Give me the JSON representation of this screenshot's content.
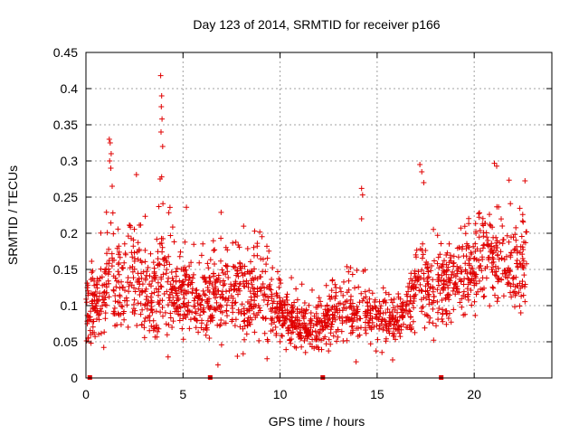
{
  "chart_data": {
    "type": "scatter",
    "title": "Day 123 of 2014, SRMTID for receiver p166",
    "xlabel": "GPS time / hours",
    "ylabel": "SRMTID / TECUs",
    "xlim": [
      0,
      24
    ],
    "ylim": [
      0,
      0.45
    ],
    "xticks": [
      0,
      5,
      10,
      15,
      20
    ],
    "xtick_labels": [
      "0",
      "5",
      "10",
      "15",
      "20"
    ],
    "yticks": [
      0,
      0.05,
      0.1,
      0.15,
      0.2,
      0.25,
      0.3,
      0.35,
      0.4,
      0.45
    ],
    "ytick_labels": [
      "0",
      "0.05",
      "0.1",
      "0.15",
      "0.2",
      "0.25",
      "0.3",
      "0.35",
      "0.4",
      "0.45"
    ],
    "grid": true,
    "marker": "plus",
    "color": "#e00000",
    "zero_markers_x": [
      0.2,
      6.4,
      12.2,
      18.3
    ],
    "series": [
      {
        "name": "SRMTID",
        "note": "approximately 2000 '+' points between 0.0 and 22.7 h; sampled via envelope",
        "envelope": [
          {
            "t": 0.0,
            "mean": 0.09,
            "spread": 0.025
          },
          {
            "t": 0.5,
            "mean": 0.095,
            "spread": 0.03
          },
          {
            "t": 1.0,
            "mean": 0.12,
            "spread": 0.04
          },
          {
            "t": 1.3,
            "mean": 0.17,
            "spread": 0.06
          },
          {
            "t": 1.8,
            "mean": 0.12,
            "spread": 0.04
          },
          {
            "t": 2.3,
            "mean": 0.15,
            "spread": 0.05
          },
          {
            "t": 2.8,
            "mean": 0.13,
            "spread": 0.05
          },
          {
            "t": 3.3,
            "mean": 0.11,
            "spread": 0.04
          },
          {
            "t": 3.9,
            "mean": 0.15,
            "spread": 0.06
          },
          {
            "t": 4.5,
            "mean": 0.1,
            "spread": 0.035
          },
          {
            "t": 5.0,
            "mean": 0.12,
            "spread": 0.035
          },
          {
            "t": 6.0,
            "mean": 0.11,
            "spread": 0.035
          },
          {
            "t": 7.0,
            "mean": 0.12,
            "spread": 0.04
          },
          {
            "t": 8.0,
            "mean": 0.12,
            "spread": 0.04
          },
          {
            "t": 9.0,
            "mean": 0.12,
            "spread": 0.04
          },
          {
            "t": 10.0,
            "mean": 0.09,
            "spread": 0.025
          },
          {
            "t": 11.0,
            "mean": 0.07,
            "spread": 0.02
          },
          {
            "t": 12.0,
            "mean": 0.07,
            "spread": 0.02
          },
          {
            "t": 13.0,
            "mean": 0.09,
            "spread": 0.025
          },
          {
            "t": 14.0,
            "mean": 0.09,
            "spread": 0.03
          },
          {
            "t": 15.0,
            "mean": 0.09,
            "spread": 0.025
          },
          {
            "t": 16.0,
            "mean": 0.07,
            "spread": 0.02
          },
          {
            "t": 17.0,
            "mean": 0.13,
            "spread": 0.04
          },
          {
            "t": 18.0,
            "mean": 0.12,
            "spread": 0.035
          },
          {
            "t": 19.0,
            "mean": 0.13,
            "spread": 0.035
          },
          {
            "t": 20.0,
            "mean": 0.16,
            "spread": 0.04
          },
          {
            "t": 21.0,
            "mean": 0.16,
            "spread": 0.04
          },
          {
            "t": 22.0,
            "mean": 0.15,
            "spread": 0.04
          },
          {
            "t": 22.7,
            "mean": 0.16,
            "spread": 0.04
          }
        ],
        "notable_points": [
          {
            "x": 1.2,
            "y": 0.33
          },
          {
            "x": 1.25,
            "y": 0.325
          },
          {
            "x": 1.3,
            "y": 0.31
          },
          {
            "x": 1.22,
            "y": 0.3
          },
          {
            "x": 1.28,
            "y": 0.29
          },
          {
            "x": 1.35,
            "y": 0.265
          },
          {
            "x": 3.85,
            "y": 0.418
          },
          {
            "x": 3.9,
            "y": 0.39
          },
          {
            "x": 3.88,
            "y": 0.375
          },
          {
            "x": 3.92,
            "y": 0.358
          },
          {
            "x": 3.87,
            "y": 0.34
          },
          {
            "x": 3.95,
            "y": 0.32
          },
          {
            "x": 3.9,
            "y": 0.278
          },
          {
            "x": 3.82,
            "y": 0.275
          },
          {
            "x": 14.2,
            "y": 0.262
          },
          {
            "x": 14.25,
            "y": 0.253
          },
          {
            "x": 14.2,
            "y": 0.22
          },
          {
            "x": 17.2,
            "y": 0.295
          },
          {
            "x": 17.3,
            "y": 0.285
          },
          {
            "x": 17.4,
            "y": 0.27
          },
          {
            "x": 6.8,
            "y": 0.018
          },
          {
            "x": 15.8,
            "y": 0.025
          },
          {
            "x": 7.8,
            "y": 0.03
          }
        ]
      }
    ]
  }
}
